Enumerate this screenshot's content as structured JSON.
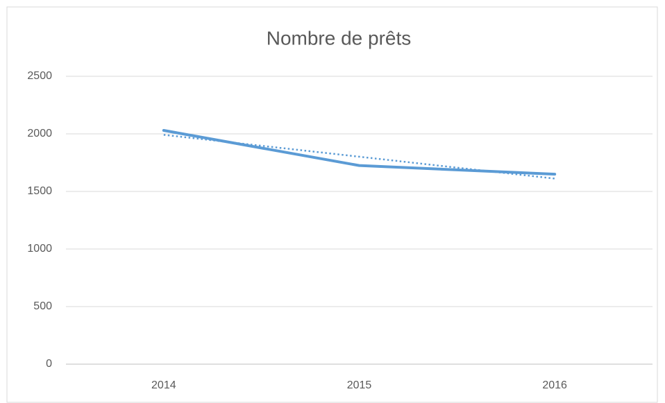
{
  "chart_data": {
    "type": "line",
    "title": "Nombre de prêts",
    "categories": [
      "2014",
      "2015",
      "2016"
    ],
    "series": [
      {
        "color": "#5b9bd5",
        "values": [
          2030,
          1725,
          1650
        ]
      }
    ],
    "trendline": {
      "kind": "linear",
      "style": "dotted"
    },
    "ylim": [
      0,
      2500
    ],
    "yticks": [
      0,
      500,
      1000,
      1500,
      2000,
      2500
    ],
    "grid": true
  }
}
